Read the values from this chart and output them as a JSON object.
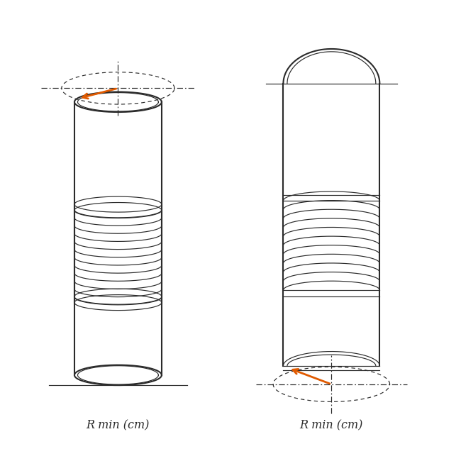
{
  "bg_color": "#ffffff",
  "line_color": "#2a2a2a",
  "arrow_color": "#e05a00",
  "label_text": "R min (cm)",
  "label_fontsize": 11.5,
  "lw_main": 1.5,
  "lw_thin": 0.85,
  "lw_med": 1.2
}
